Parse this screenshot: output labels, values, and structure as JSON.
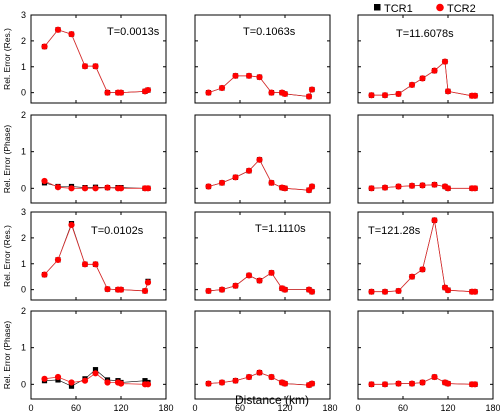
{
  "chart_data": {
    "type": "scatter",
    "grid": false,
    "xlim": [
      0,
      180
    ],
    "x_ticks": [
      "0",
      "60",
      "120",
      "180"
    ],
    "xlabel": "Distance (km)",
    "legend": {
      "placement": "top-right",
      "entries": [
        {
          "name": "TCR1",
          "marker": "square",
          "color": "#000000"
        },
        {
          "name": "TCR2",
          "marker": "circle",
          "color": "#ff0000"
        }
      ]
    },
    "rows": [
      {
        "ylabel": "Rel. Error (Res.)",
        "ylim": [
          -0.4,
          3
        ],
        "y_ticks": [
          "0",
          "1",
          "2",
          "3"
        ]
      },
      {
        "ylabel": "Rel. Error (Phase)",
        "ylim": [
          -0.4,
          2
        ],
        "y_ticks": [
          "0",
          "1",
          "2"
        ]
      },
      {
        "ylabel": "Rel. Error (Res.)",
        "ylim": [
          -0.4,
          3
        ],
        "y_ticks": [
          "0",
          "1",
          "2",
          "3"
        ]
      },
      {
        "ylabel": "Rel. Error (Phase)",
        "ylim": [
          -0.4,
          2
        ],
        "y_ticks": [
          "0",
          "1",
          "2"
        ]
      }
    ],
    "panels": [
      {
        "row": 0,
        "col": 0,
        "annotation": "T=0.0013s",
        "x": [
          18,
          36,
          54,
          72,
          86,
          102,
          116,
          120,
          152,
          156
        ],
        "series": [
          {
            "name": "TCR1",
            "values": [
              1.78,
              2.43,
              2.26,
              1.02,
              1.02,
              0.0,
              0.0,
              0.0,
              0.05,
              0.1
            ]
          },
          {
            "name": "TCR2",
            "values": [
              1.78,
              2.43,
              2.26,
              1.02,
              1.02,
              0.0,
              0.0,
              0.0,
              0.05,
              0.1
            ]
          }
        ]
      },
      {
        "row": 0,
        "col": 1,
        "annotation": "T=0.1063s",
        "x": [
          18,
          36,
          54,
          72,
          86,
          102,
          116,
          120,
          152,
          156
        ],
        "series": [
          {
            "name": "TCR1",
            "values": [
              0.0,
              0.18,
              0.65,
              0.65,
              0.6,
              0.0,
              0.0,
              -0.05,
              -0.15,
              0.12
            ]
          },
          {
            "name": "TCR2",
            "values": [
              0.0,
              0.18,
              0.65,
              0.65,
              0.6,
              0.0,
              0.0,
              -0.05,
              -0.15,
              0.12
            ]
          }
        ]
      },
      {
        "row": 0,
        "col": 2,
        "annotation": "T=11.6078s",
        "x": [
          18,
          36,
          54,
          72,
          86,
          102,
          116,
          120,
          152,
          156
        ],
        "series": [
          {
            "name": "TCR1",
            "values": [
              -0.1,
              -0.1,
              -0.05,
              0.3,
              0.55,
              0.85,
              1.2,
              0.05,
              -0.12,
              -0.12
            ]
          },
          {
            "name": "TCR2",
            "values": [
              -0.1,
              -0.1,
              -0.05,
              0.3,
              0.55,
              0.85,
              1.2,
              0.05,
              -0.12,
              -0.12
            ]
          }
        ]
      },
      {
        "row": 1,
        "col": 0,
        "annotation": "",
        "x": [
          18,
          36,
          54,
          72,
          86,
          102,
          116,
          120,
          152,
          156
        ],
        "series": [
          {
            "name": "TCR1",
            "values": [
              0.15,
              0.05,
              0.05,
              0.02,
              0.03,
              0.02,
              0.02,
              0.02,
              0.0,
              0.0
            ]
          },
          {
            "name": "TCR2",
            "values": [
              0.2,
              0.03,
              0.0,
              0.0,
              0.0,
              0.02,
              0.0,
              0.0,
              0.0,
              0.0
            ]
          }
        ]
      },
      {
        "row": 1,
        "col": 1,
        "annotation": "",
        "x": [
          18,
          36,
          54,
          72,
          86,
          102,
          116,
          120,
          152,
          156
        ],
        "series": [
          {
            "name": "TCR1",
            "values": [
              0.05,
              0.15,
              0.3,
              0.48,
              0.78,
              0.15,
              0.02,
              0.0,
              -0.05,
              0.05
            ]
          },
          {
            "name": "TCR2",
            "values": [
              0.05,
              0.15,
              0.3,
              0.48,
              0.78,
              0.15,
              0.02,
              0.0,
              -0.05,
              0.05
            ]
          }
        ]
      },
      {
        "row": 1,
        "col": 2,
        "annotation": "",
        "x": [
          18,
          36,
          54,
          72,
          86,
          102,
          116,
          120,
          152,
          156
        ],
        "series": [
          {
            "name": "TCR1",
            "values": [
              0.0,
              0.02,
              0.05,
              0.07,
              0.08,
              0.1,
              0.05,
              0.0,
              0.0,
              0.0
            ]
          },
          {
            "name": "TCR2",
            "values": [
              0.0,
              0.02,
              0.05,
              0.07,
              0.08,
              0.1,
              0.05,
              0.0,
              0.0,
              0.0
            ]
          }
        ]
      },
      {
        "row": 2,
        "col": 0,
        "annotation": "T=0.0102s",
        "x": [
          18,
          36,
          54,
          72,
          86,
          102,
          116,
          120,
          152,
          156
        ],
        "series": [
          {
            "name": "TCR1",
            "values": [
              0.58,
              1.15,
              2.55,
              0.98,
              0.98,
              0.02,
              0.0,
              0.0,
              -0.05,
              0.32
            ]
          },
          {
            "name": "TCR2",
            "values": [
              0.58,
              1.15,
              2.5,
              0.98,
              0.98,
              0.02,
              0.0,
              0.0,
              -0.05,
              0.28
            ]
          }
        ]
      },
      {
        "row": 2,
        "col": 1,
        "annotation": "T=1.1110s",
        "x": [
          18,
          36,
          54,
          72,
          86,
          102,
          116,
          120,
          152,
          156
        ],
        "series": [
          {
            "name": "TCR1",
            "values": [
              -0.05,
              0.0,
              0.15,
              0.55,
              0.35,
              0.65,
              0.05,
              0.0,
              0.0,
              -0.08
            ]
          },
          {
            "name": "TCR2",
            "values": [
              -0.05,
              0.0,
              0.15,
              0.55,
              0.35,
              0.65,
              0.05,
              0.0,
              0.0,
              -0.08
            ]
          }
        ]
      },
      {
        "row": 2,
        "col": 2,
        "annotation": "T=121.28s",
        "x": [
          18,
          36,
          54,
          72,
          86,
          102,
          116,
          120,
          152,
          156
        ],
        "series": [
          {
            "name": "TCR1",
            "values": [
              -0.08,
              -0.08,
              -0.05,
              0.5,
              0.78,
              2.68,
              0.08,
              -0.02,
              -0.08,
              -0.08
            ]
          },
          {
            "name": "TCR2",
            "values": [
              -0.08,
              -0.08,
              -0.05,
              0.5,
              0.78,
              2.68,
              0.08,
              -0.02,
              -0.08,
              -0.08
            ]
          }
        ]
      },
      {
        "row": 3,
        "col": 0,
        "annotation": "",
        "x": [
          18,
          36,
          54,
          72,
          86,
          102,
          116,
          120,
          152,
          156
        ],
        "series": [
          {
            "name": "TCR1",
            "values": [
              0.1,
              0.12,
              -0.05,
              0.15,
              0.4,
              0.12,
              0.1,
              0.05,
              0.1,
              0.05
            ]
          },
          {
            "name": "TCR2",
            "values": [
              0.15,
              0.2,
              0.05,
              0.1,
              0.3,
              0.05,
              0.05,
              0.02,
              0.0,
              0.0
            ]
          }
        ]
      },
      {
        "row": 3,
        "col": 1,
        "annotation": "",
        "x": [
          18,
          36,
          54,
          72,
          86,
          102,
          116,
          120,
          152,
          156
        ],
        "series": [
          {
            "name": "TCR1",
            "values": [
              0.02,
              0.05,
              0.1,
              0.2,
              0.32,
              0.2,
              0.05,
              0.02,
              -0.02,
              0.02
            ]
          },
          {
            "name": "TCR2",
            "values": [
              0.02,
              0.05,
              0.1,
              0.2,
              0.32,
              0.2,
              0.05,
              0.02,
              -0.02,
              0.02
            ]
          }
        ]
      },
      {
        "row": 3,
        "col": 2,
        "annotation": "",
        "x": [
          18,
          36,
          54,
          72,
          86,
          102,
          116,
          120,
          152,
          156
        ],
        "series": [
          {
            "name": "TCR1",
            "values": [
              0.0,
              0.0,
              0.02,
              0.02,
              0.05,
              0.2,
              0.05,
              0.02,
              0.0,
              0.0
            ]
          },
          {
            "name": "TCR2",
            "values": [
              0.0,
              0.0,
              0.02,
              0.02,
              0.05,
              0.2,
              0.05,
              0.02,
              0.0,
              0.0
            ]
          }
        ]
      }
    ]
  }
}
